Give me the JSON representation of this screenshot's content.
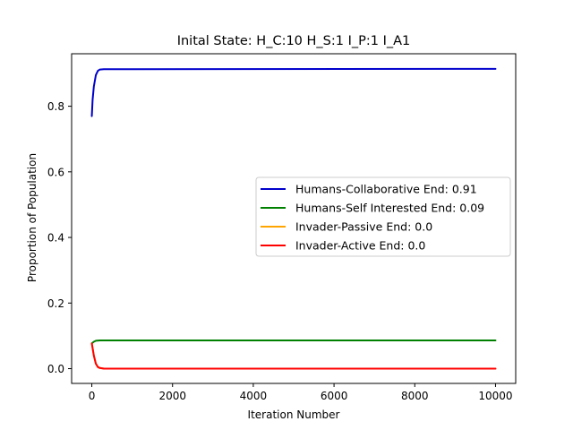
{
  "chart_data": {
    "type": "line",
    "title": "Inital State: H_C:10 H_S:1 I_P:1 I_A1",
    "xlabel": "Iteration Number",
    "ylabel": "Proportion of Population",
    "xlim": [
      -500,
      10500
    ],
    "ylim": [
      -0.045,
      0.96
    ],
    "xticks": [
      0,
      2000,
      4000,
      6000,
      8000,
      10000
    ],
    "xtick_labels": [
      "0",
      "2000",
      "4000",
      "6000",
      "8000",
      "10000"
    ],
    "yticks": [
      0.0,
      0.2,
      0.4,
      0.6,
      0.8
    ],
    "ytick_labels": [
      "0.0",
      "0.2",
      "0.4",
      "0.6",
      "0.8"
    ],
    "grid": false,
    "legend_position": "center-right",
    "series": [
      {
        "name": "Humans-Collaborative End: 0.91",
        "color": "#0000cc",
        "x": [
          0,
          20,
          50,
          100,
          150,
          200,
          300,
          500,
          1000,
          10000
        ],
        "y": [
          0.77,
          0.82,
          0.86,
          0.895,
          0.908,
          0.912,
          0.913,
          0.913,
          0.913,
          0.914
        ]
      },
      {
        "name": "Humans-Self Interested End: 0.09",
        "color": "#008000",
        "x": [
          0,
          50,
          100,
          200,
          500,
          1000,
          10000
        ],
        "y": [
          0.077,
          0.082,
          0.085,
          0.086,
          0.086,
          0.086,
          0.086
        ]
      },
      {
        "name": "Invader-Passive End: 0.0",
        "color": "#ffa500",
        "x": [
          0,
          50,
          100,
          150,
          200,
          300,
          500,
          10000
        ],
        "y": [
          0.077,
          0.04,
          0.015,
          0.005,
          0.002,
          0.0,
          0.0,
          0.0
        ]
      },
      {
        "name": "Invader-Active End: 0.0",
        "color": "#ff0000",
        "x": [
          0,
          50,
          100,
          150,
          200,
          300,
          500,
          10000
        ],
        "y": [
          0.077,
          0.04,
          0.015,
          0.005,
          0.002,
          0.0,
          0.0,
          0.0
        ]
      }
    ]
  }
}
